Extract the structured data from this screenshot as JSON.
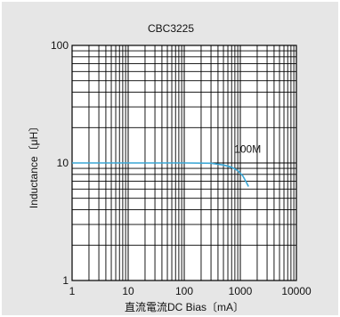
{
  "chart_data": {
    "type": "line",
    "title": "CBC3225",
    "xlabel": "直流電流DC Bias〔mA〕",
    "ylabel": "Inductance〔μH〕",
    "x_scale": "log",
    "y_scale": "log",
    "xlim": [
      1,
      10000
    ],
    "ylim": [
      1,
      100
    ],
    "grid": true,
    "x_ticks": [
      "1",
      "10",
      "100",
      "1000",
      "10000"
    ],
    "y_ticks": [
      "1",
      "10",
      "100"
    ],
    "series": [
      {
        "name": "100M",
        "color": "#3aa7d6",
        "x": [
          1,
          10,
          100,
          300,
          500,
          700,
          900,
          1100,
          1250,
          1400
        ],
        "y": [
          10.0,
          10.0,
          10.0,
          9.95,
          9.6,
          9.2,
          8.6,
          7.8,
          7.0,
          6.3
        ]
      }
    ]
  }
}
